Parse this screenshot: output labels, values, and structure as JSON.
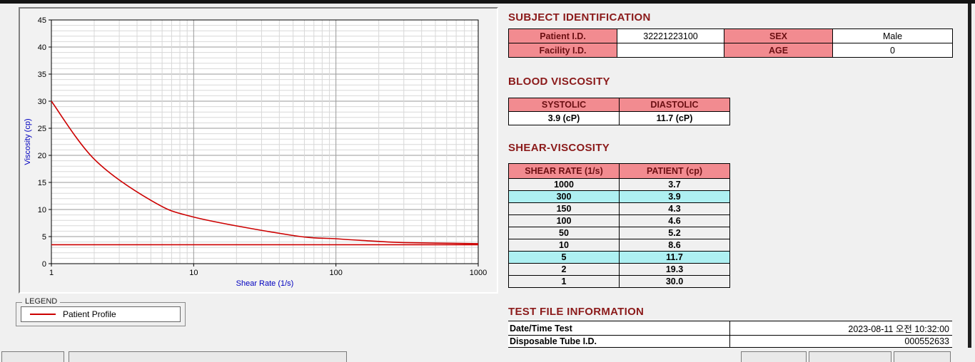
{
  "headings": {
    "subject": "SUBJECT IDENTIFICATION",
    "blood": "BLOOD VISCOSITY",
    "shear": "SHEAR-VISCOSITY",
    "testfile": "TEST FILE INFORMATION"
  },
  "subject": {
    "rows": [
      {
        "label1": "Patient I.D.",
        "value1": "32221223100",
        "label2": "SEX",
        "value2": "Male"
      },
      {
        "label1": "Facility I.D.",
        "value1": "",
        "label2": "AGE",
        "value2": "0"
      }
    ]
  },
  "blood": {
    "headers": [
      "SYSTOLIC",
      "DIASTOLIC"
    ],
    "values": [
      "3.9 (cP)",
      "11.7 (cP)"
    ]
  },
  "shear_table": {
    "headers": [
      "SHEAR RATE (1/s)",
      "PATIENT (cp)"
    ],
    "rows": [
      {
        "rate": "1000",
        "value": "3.7",
        "highlight": false
      },
      {
        "rate": "300",
        "value": "3.9",
        "highlight": true
      },
      {
        "rate": "150",
        "value": "4.3",
        "highlight": false
      },
      {
        "rate": "100",
        "value": "4.6",
        "highlight": false
      },
      {
        "rate": "50",
        "value": "5.2",
        "highlight": false
      },
      {
        "rate": "10",
        "value": "8.6",
        "highlight": false
      },
      {
        "rate": "5",
        "value": "11.7",
        "highlight": true
      },
      {
        "rate": "2",
        "value": "19.3",
        "highlight": false
      },
      {
        "rate": "1",
        "value": "30.0",
        "highlight": false
      }
    ]
  },
  "testfile": {
    "rows": [
      {
        "label": "Date/Time Test",
        "value": "2023-08-11  오전 10:32:00"
      },
      {
        "label": "Disposable Tube I.D.",
        "value": "000552633"
      }
    ]
  },
  "legend": {
    "title": "LEGEND",
    "series": "Patient Profile"
  },
  "colors": {
    "pink": "#f28b90",
    "cyan": "#aef0f2",
    "heading": "#8b1a1a",
    "curve": "#cc0000",
    "axis_label": "#0000bf"
  },
  "chart_data": {
    "type": "line",
    "x": [
      1,
      2,
      5,
      10,
      50,
      100,
      150,
      300,
      1000
    ],
    "series": [
      {
        "name": "Patient Profile",
        "values": [
          30.0,
          19.3,
          11.7,
          8.6,
          5.2,
          4.6,
          4.3,
          3.9,
          3.7
        ]
      }
    ],
    "horizontal_line": 3.5,
    "title": "",
    "xlabel": "Shear Rate (1/s)",
    "ylabel": "Viscosity (cp)",
    "x_scale": "log",
    "xlim": [
      1,
      1000
    ],
    "ylim": [
      0,
      45
    ],
    "x_ticks": [
      1,
      10,
      100,
      1000
    ],
    "y_ticks": [
      0,
      5,
      10,
      15,
      20,
      25,
      30,
      35,
      40,
      45
    ],
    "grid": true,
    "legend_position": "below-left"
  }
}
